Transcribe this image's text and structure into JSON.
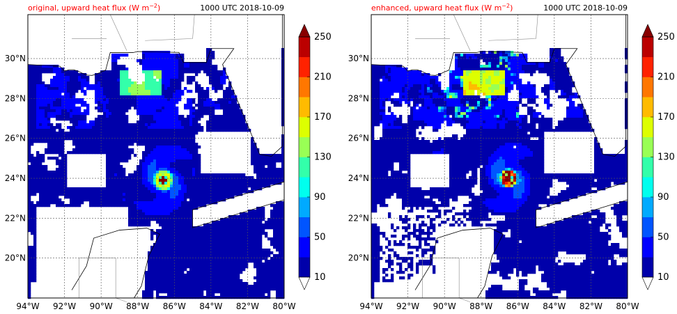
{
  "colors": {
    "title_left": "#ff0000",
    "title_right": "#000000",
    "coast": "#000000",
    "border": "#888888",
    "grid": "#555555"
  },
  "colorbar": {
    "levels": [
      10,
      30,
      50,
      70,
      90,
      110,
      130,
      150,
      170,
      190,
      210,
      230,
      250
    ],
    "tick_labels": [
      "10",
      "50",
      "90",
      "130",
      "170",
      "210",
      "250"
    ],
    "colors": [
      "#0000aa",
      "#0000ff",
      "#0055ff",
      "#00aaff",
      "#00ffee",
      "#33ffaa",
      "#99ff55",
      "#ddff00",
      "#ffbb00",
      "#ff7700",
      "#ff2200",
      "#bb0000"
    ],
    "over_color": "#880000",
    "under_color": "#ffffff"
  },
  "axes": {
    "lon_ticks": [
      "94°W",
      "92°W",
      "90°W",
      "88°W",
      "86°W",
      "84°W",
      "82°W",
      "80°W"
    ],
    "lat_ticks": [
      "20°N",
      "22°N",
      "24°N",
      "26°N",
      "28°N",
      "30°N"
    ]
  },
  "panels": [
    {
      "id": "original",
      "title_left_prefix": "original, upward heat flux (W m",
      "title_left_exp": "−2",
      "title_left_suffix": ")",
      "title_right": "1000 UTC 2018-10-09",
      "storm_center": {
        "lon": -86.6,
        "lat": 23.9
      },
      "peak_flux": 170
    },
    {
      "id": "enhanced",
      "title_left_prefix": "enhanced, upward heat flux (W m",
      "title_left_exp": "−2",
      "title_left_suffix": ")",
      "title_right": "1000 UTC 2018-10-09",
      "storm_center": {
        "lon": -86.5,
        "lat": 24.0
      },
      "peak_flux": 250
    }
  ]
}
